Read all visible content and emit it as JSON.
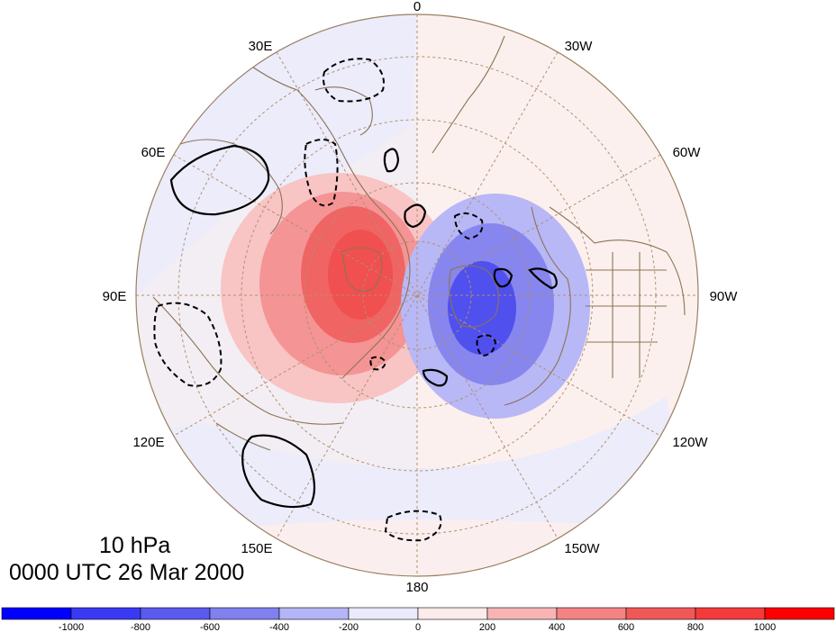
{
  "map": {
    "projection": "north-polar-stereographic",
    "longitude_labels": [
      "0",
      "30W",
      "60W",
      "90W",
      "120W",
      "150W",
      "180",
      "150E",
      "120E",
      "90E",
      "60E",
      "30E"
    ],
    "anomaly_centers": [
      {
        "sign": "positive",
        "region": "Eurasia",
        "peak_range": "600 to 800"
      },
      {
        "sign": "negative",
        "region": "Canada / Greenland",
        "peak_range": "-800 to -600"
      }
    ]
  },
  "caption": {
    "level": "10 hPa",
    "timestamp": "0000 UTC 26 Mar 2000"
  },
  "colorbar": {
    "ticks": [
      "-1000",
      "-800",
      "-600",
      "-400",
      "-200",
      "0",
      "200",
      "400",
      "600",
      "800",
      "1000"
    ],
    "colors": [
      "#0000ff",
      "#3a3af5",
      "#5a5aee",
      "#8080ee",
      "#b4b4f6",
      "#eaeafc",
      "#fcebeb",
      "#f8b4b4",
      "#f48484",
      "#f05858",
      "#f43a3a",
      "#ff0000"
    ]
  },
  "colors": {
    "coastline": "#8b7355",
    "graticule": "#b09070",
    "contour": "#000000"
  }
}
